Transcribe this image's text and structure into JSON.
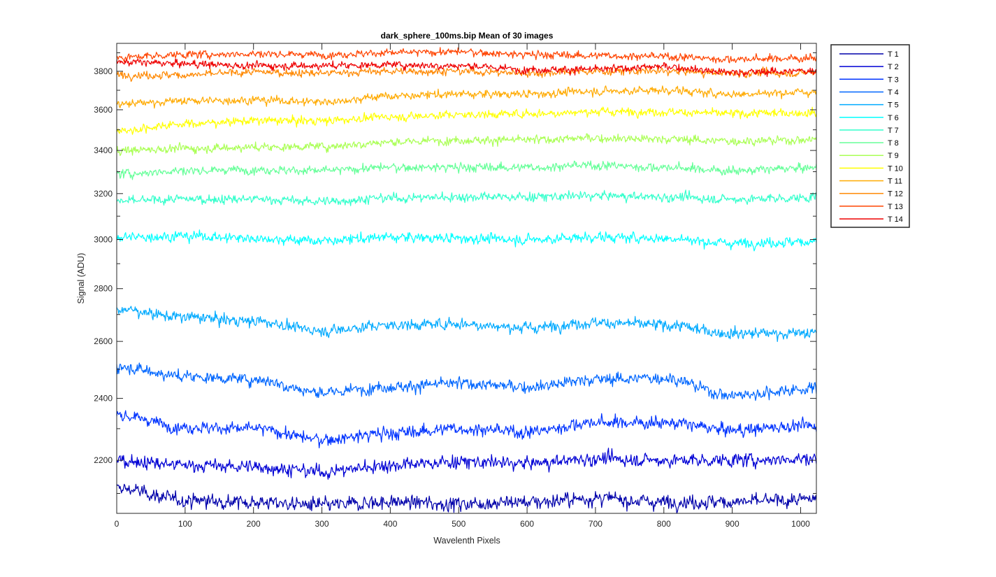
{
  "chart_data": {
    "type": "line",
    "title": "dark_sphere_100ms.bip  Mean of 30 images",
    "xlabel": "Wavelenth Pixels",
    "ylabel": "Signal (ADU)",
    "xlim": [
      0,
      1023
    ],
    "ylim": [
      2042,
      3952
    ],
    "y_scale": "log",
    "xticks": [
      0,
      100,
      200,
      300,
      400,
      500,
      600,
      700,
      800,
      900,
      1000
    ],
    "yticks": [
      2200,
      2400,
      2600,
      2800,
      3000,
      3200,
      3400,
      3600,
      3800
    ],
    "grid": false,
    "legend_position": "outside-top-right",
    "samples_per_series": 1024,
    "noise_amplitude_adu": 14,
    "series": [
      {
        "name": "T 1",
        "color": "#0000AA",
        "x": [
          0,
          100,
          200,
          300,
          400,
          500,
          600,
          700,
          800,
          900,
          1000,
          1023
        ],
        "y": [
          2115,
          2080,
          2075,
          2065,
          2075,
          2070,
          2075,
          2085,
          2075,
          2075,
          2080,
          2085
        ]
      },
      {
        "name": "T 2",
        "color": "#0000D4",
        "x": [
          0,
          100,
          200,
          300,
          400,
          500,
          600,
          700,
          800,
          900,
          1000,
          1023
        ],
        "y": [
          2200,
          2185,
          2180,
          2165,
          2185,
          2195,
          2190,
          2205,
          2200,
          2200,
          2205,
          2205
        ]
      },
      {
        "name": "T 3",
        "color": "#0033FF",
        "x": [
          0,
          100,
          200,
          300,
          400,
          500,
          600,
          700,
          800,
          900,
          1000,
          1023
        ],
        "y": [
          2345,
          2305,
          2300,
          2265,
          2285,
          2300,
          2290,
          2320,
          2320,
          2295,
          2310,
          2305
        ]
      },
      {
        "name": "T 4",
        "color": "#0066FF",
        "x": [
          0,
          100,
          200,
          300,
          400,
          500,
          600,
          700,
          800,
          900,
          1000,
          1023
        ],
        "y": [
          2510,
          2475,
          2465,
          2420,
          2440,
          2450,
          2440,
          2465,
          2470,
          2410,
          2430,
          2435
        ]
      },
      {
        "name": "T 5",
        "color": "#00AAFF",
        "x": [
          0,
          100,
          200,
          300,
          400,
          500,
          600,
          700,
          800,
          900,
          1000,
          1023
        ],
        "y": [
          2720,
          2690,
          2675,
          2640,
          2660,
          2665,
          2650,
          2670,
          2660,
          2630,
          2630,
          2630
        ]
      },
      {
        "name": "T 6",
        "color": "#00FFFF",
        "x": [
          0,
          100,
          200,
          300,
          400,
          500,
          600,
          700,
          800,
          900,
          1000,
          1023
        ],
        "y": [
          3010,
          3015,
          3005,
          2995,
          3010,
          3005,
          3000,
          3010,
          3005,
          2985,
          2990,
          2995
        ]
      },
      {
        "name": "T 7",
        "color": "#33FFCC",
        "x": [
          0,
          100,
          200,
          300,
          400,
          500,
          600,
          700,
          800,
          900,
          1000,
          1023
        ],
        "y": [
          3165,
          3175,
          3175,
          3165,
          3180,
          3185,
          3185,
          3190,
          3185,
          3175,
          3180,
          3185
        ]
      },
      {
        "name": "T 8",
        "color": "#66FF99",
        "x": [
          0,
          100,
          200,
          300,
          400,
          500,
          600,
          700,
          800,
          900,
          1000,
          1023
        ],
        "y": [
          3290,
          3305,
          3310,
          3305,
          3320,
          3320,
          3320,
          3330,
          3320,
          3305,
          3315,
          3320
        ]
      },
      {
        "name": "T 9",
        "color": "#AAFF55",
        "x": [
          0,
          100,
          200,
          300,
          400,
          500,
          600,
          700,
          800,
          900,
          1000,
          1023
        ],
        "y": [
          3400,
          3410,
          3415,
          3420,
          3440,
          3450,
          3450,
          3460,
          3455,
          3445,
          3450,
          3455
        ]
      },
      {
        "name": "T 10",
        "color": "#FFFF00",
        "x": [
          0,
          100,
          200,
          300,
          400,
          500,
          600,
          700,
          800,
          900,
          1000,
          1023
        ],
        "y": [
          3495,
          3530,
          3545,
          3545,
          3565,
          3575,
          3580,
          3590,
          3590,
          3580,
          3585,
          3585
        ]
      },
      {
        "name": "T 11",
        "color": "#FFAA00",
        "x": [
          0,
          100,
          200,
          300,
          400,
          500,
          600,
          700,
          800,
          900,
          1000,
          1023
        ],
        "y": [
          3630,
          3645,
          3650,
          3640,
          3670,
          3680,
          3680,
          3695,
          3700,
          3680,
          3690,
          3690
        ]
      },
      {
        "name": "T 12",
        "color": "#FF8800",
        "x": [
          0,
          100,
          200,
          300,
          400,
          500,
          600,
          700,
          800,
          900,
          1000,
          1023
        ],
        "y": [
          3780,
          3780,
          3795,
          3790,
          3800,
          3800,
          3790,
          3800,
          3800,
          3790,
          3790,
          3800
        ]
      },
      {
        "name": "T 13",
        "color": "#FF4400",
        "x": [
          0,
          100,
          200,
          300,
          400,
          500,
          600,
          700,
          800,
          900,
          1000,
          1023
        ],
        "y": [
          3875,
          3890,
          3895,
          3890,
          3900,
          3905,
          3890,
          3885,
          3880,
          3865,
          3870,
          3875
        ]
      },
      {
        "name": "T 14",
        "color": "#EE0000",
        "x": [
          0,
          100,
          200,
          300,
          400,
          500,
          600,
          700,
          800,
          900,
          1000,
          1023
        ],
        "y": [
          3850,
          3840,
          3830,
          3830,
          3835,
          3830,
          3810,
          3810,
          3825,
          3795,
          3800,
          3805
        ]
      }
    ]
  }
}
